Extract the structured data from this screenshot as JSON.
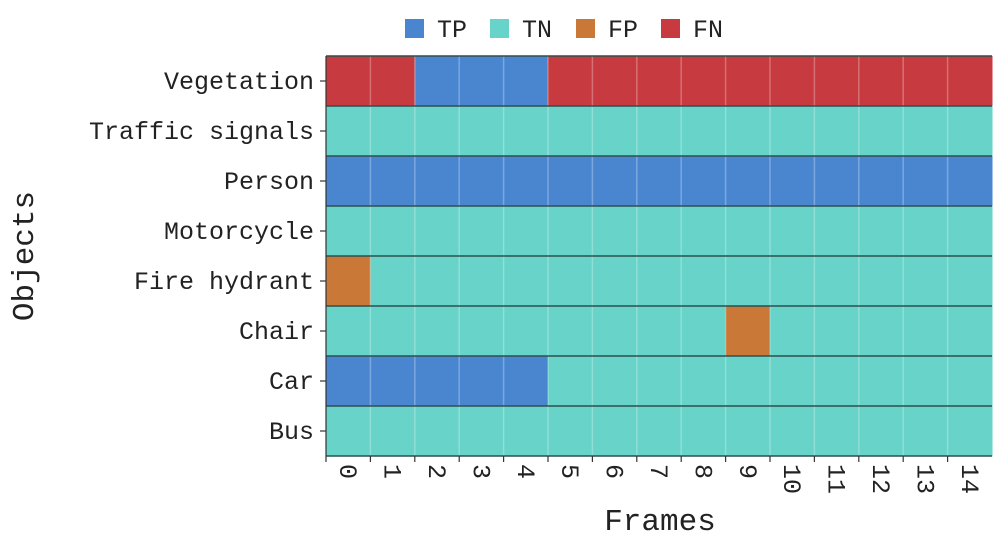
{
  "chart_data": {
    "type": "heatmap",
    "title": "",
    "xlabel": "Frames",
    "ylabel": "Objects",
    "x": [
      "0",
      "1",
      "2",
      "3",
      "4",
      "5",
      "6",
      "7",
      "8",
      "9",
      "10",
      "11",
      "12",
      "13",
      "14"
    ],
    "categories": [
      "Vegetation",
      "Traffic signals",
      "Person",
      "Motorcycle",
      "Fire hydrant",
      "Chair",
      "Car",
      "Bus"
    ],
    "legend": {
      "placement": "top-center",
      "entries": [
        {
          "key": "TP",
          "label": "TP",
          "color": "#4a86d0"
        },
        {
          "key": "TN",
          "label": "TN",
          "color": "#67d3c9"
        },
        {
          "key": "FP",
          "label": "FP",
          "color": "#c97838"
        },
        {
          "key": "FN",
          "label": "FN",
          "color": "#c73a3f"
        }
      ]
    },
    "rows": [
      {
        "object": "Vegetation",
        "values": [
          "FN",
          "FN",
          "TP",
          "TP",
          "TP",
          "FN",
          "FN",
          "FN",
          "FN",
          "FN",
          "FN",
          "FN",
          "FN",
          "FN",
          "FN"
        ]
      },
      {
        "object": "Traffic signals",
        "values": [
          "TN",
          "TN",
          "TN",
          "TN",
          "TN",
          "TN",
          "TN",
          "TN",
          "TN",
          "TN",
          "TN",
          "TN",
          "TN",
          "TN",
          "TN"
        ]
      },
      {
        "object": "Person",
        "values": [
          "TP",
          "TP",
          "TP",
          "TP",
          "TP",
          "TP",
          "TP",
          "TP",
          "TP",
          "TP",
          "TP",
          "TP",
          "TP",
          "TP",
          "TP"
        ]
      },
      {
        "object": "Motorcycle",
        "values": [
          "TN",
          "TN",
          "TN",
          "TN",
          "TN",
          "TN",
          "TN",
          "TN",
          "TN",
          "TN",
          "TN",
          "TN",
          "TN",
          "TN",
          "TN"
        ]
      },
      {
        "object": "Fire hydrant",
        "values": [
          "FP",
          "TN",
          "TN",
          "TN",
          "TN",
          "TN",
          "TN",
          "TN",
          "TN",
          "TN",
          "TN",
          "TN",
          "TN",
          "TN",
          "TN"
        ]
      },
      {
        "object": "Chair",
        "values": [
          "TN",
          "TN",
          "TN",
          "TN",
          "TN",
          "TN",
          "TN",
          "TN",
          "TN",
          "FP",
          "TN",
          "TN",
          "TN",
          "TN",
          "TN"
        ]
      },
      {
        "object": "Car",
        "values": [
          "TP",
          "TP",
          "TP",
          "TP",
          "TP",
          "TN",
          "TN",
          "TN",
          "TN",
          "TN",
          "TN",
          "TN",
          "TN",
          "TN",
          "TN"
        ]
      },
      {
        "object": "Bus",
        "values": [
          "TN",
          "TN",
          "TN",
          "TN",
          "TN",
          "TN",
          "TN",
          "TN",
          "TN",
          "TN",
          "TN",
          "TN",
          "TN",
          "TN",
          "TN"
        ]
      }
    ]
  }
}
